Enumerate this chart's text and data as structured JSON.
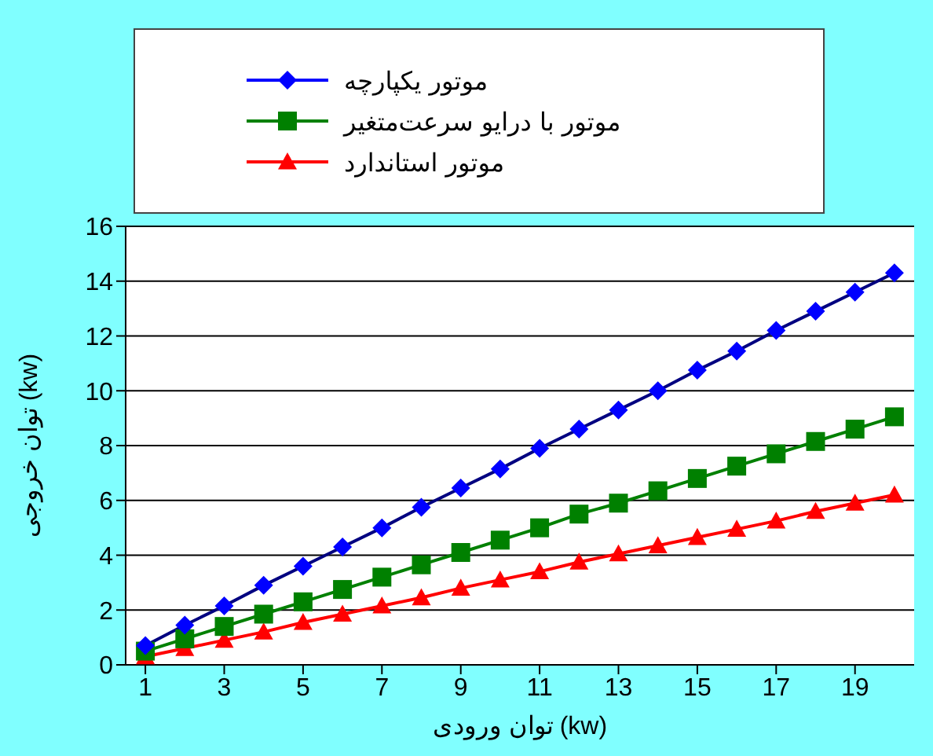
{
  "chart_data": {
    "type": "line",
    "xlabel": "توان ورودی (kw)",
    "ylabel": "توان خروجی (kw)",
    "x": [
      1,
      2,
      3,
      4,
      5,
      6,
      7,
      8,
      9,
      10,
      11,
      12,
      13,
      14,
      15,
      16,
      17,
      18,
      19,
      20
    ],
    "xlim": [
      0.5,
      20.5
    ],
    "xticks": [
      1,
      3,
      5,
      7,
      9,
      11,
      13,
      15,
      17,
      19
    ],
    "ylim": [
      0,
      16
    ],
    "yticks": [
      0,
      2,
      4,
      6,
      8,
      10,
      12,
      14,
      16
    ],
    "grid": "y",
    "legend": "top",
    "series": [
      {
        "name": "موتور یکپارچه",
        "color": "#0000ff",
        "marker": "diamond",
        "values": [
          0.7,
          1.45,
          2.15,
          2.9,
          3.6,
          4.3,
          5.0,
          5.75,
          6.45,
          7.15,
          7.9,
          8.6,
          9.3,
          10.0,
          10.75,
          11.45,
          12.2,
          12.9,
          13.6,
          14.3
        ]
      },
      {
        "name": "موتور با درایو سرعت‌متغیر",
        "color": "#008000",
        "marker": "square",
        "values": [
          0.5,
          0.95,
          1.4,
          1.85,
          2.3,
          2.75,
          3.2,
          3.65,
          4.1,
          4.55,
          5.0,
          5.5,
          5.9,
          6.35,
          6.8,
          7.25,
          7.7,
          8.15,
          8.6,
          9.05
        ]
      },
      {
        "name": "موتور استاندارد",
        "color": "#ff0000",
        "marker": "triangle",
        "values": [
          0.3,
          0.6,
          0.9,
          1.2,
          1.55,
          1.85,
          2.15,
          2.45,
          2.8,
          3.1,
          3.4,
          3.75,
          4.05,
          4.35,
          4.65,
          4.95,
          5.25,
          5.6,
          5.9,
          6.2
        ]
      }
    ]
  }
}
